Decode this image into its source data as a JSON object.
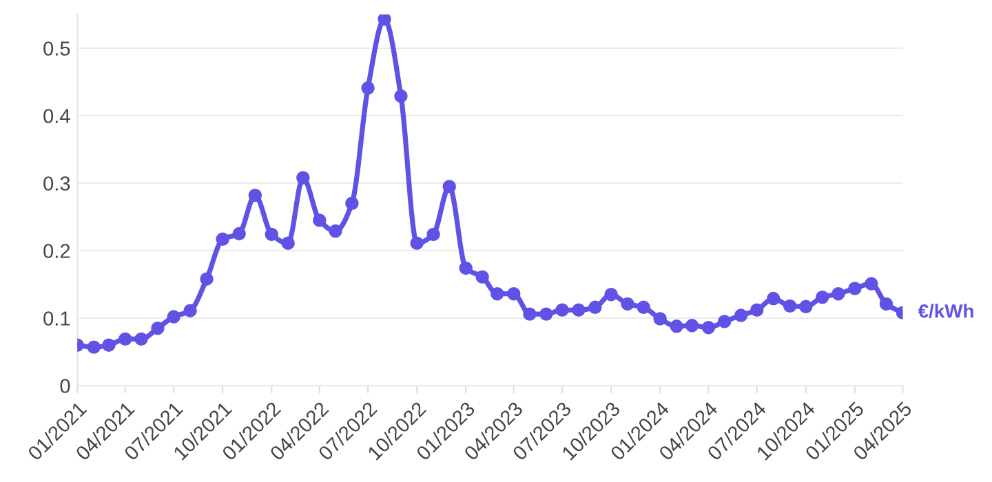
{
  "chart_data": {
    "type": "line",
    "x": [
      "2021-01",
      "2021-02",
      "2021-03",
      "2021-04",
      "2021-05",
      "2021-06",
      "2021-07",
      "2021-08",
      "2021-09",
      "2021-10",
      "2021-11",
      "2021-12",
      "2022-01",
      "2022-02",
      "2022-03",
      "2022-04",
      "2022-05",
      "2022-06",
      "2022-07",
      "2022-08",
      "2022-09",
      "2022-10",
      "2022-11",
      "2022-12",
      "2023-01",
      "2023-02",
      "2023-03",
      "2023-04",
      "2023-05",
      "2023-06",
      "2023-07",
      "2023-08",
      "2023-09",
      "2023-10",
      "2023-11",
      "2023-12",
      "2024-01",
      "2024-02",
      "2024-03",
      "2024-04",
      "2024-05",
      "2024-06",
      "2024-07",
      "2024-08",
      "2024-09",
      "2024-10",
      "2024-11",
      "2024-12",
      "2025-01",
      "2025-02",
      "2025-03",
      "2025-04"
    ],
    "series": [
      {
        "name": "€/kWh",
        "color": "#6152e6",
        "values": [
          0.06,
          0.057,
          0.06,
          0.069,
          0.069,
          0.085,
          0.102,
          0.111,
          0.158,
          0.217,
          0.225,
          0.282,
          0.224,
          0.211,
          0.308,
          0.245,
          0.229,
          0.27,
          0.441,
          0.543,
          0.429,
          0.211,
          0.224,
          0.295,
          0.174,
          0.161,
          0.136,
          0.136,
          0.106,
          0.106,
          0.112,
          0.112,
          0.116,
          0.135,
          0.121,
          0.116,
          0.099,
          0.088,
          0.089,
          0.086,
          0.095,
          0.104,
          0.112,
          0.129,
          0.118,
          0.117,
          0.131,
          0.136,
          0.144,
          0.151,
          0.121,
          0.108
        ]
      }
    ],
    "xlim": [
      "2021-01",
      "2025-04"
    ],
    "xticks": [
      {
        "value": "2021-01",
        "label": "01/2021"
      },
      {
        "value": "2021-04",
        "label": "04/2021"
      },
      {
        "value": "2021-07",
        "label": "07/2021"
      },
      {
        "value": "2021-10",
        "label": "10/2021"
      },
      {
        "value": "2022-01",
        "label": "01/2022"
      },
      {
        "value": "2022-04",
        "label": "04/2022"
      },
      {
        "value": "2022-07",
        "label": "07/2022"
      },
      {
        "value": "2022-10",
        "label": "10/2022"
      },
      {
        "value": "2023-01",
        "label": "01/2023"
      },
      {
        "value": "2023-04",
        "label": "04/2023"
      },
      {
        "value": "2023-07",
        "label": "07/2023"
      },
      {
        "value": "2023-10",
        "label": "10/2023"
      },
      {
        "value": "2024-01",
        "label": "01/2024"
      },
      {
        "value": "2024-04",
        "label": "04/2024"
      },
      {
        "value": "2024-07",
        "label": "07/2024"
      },
      {
        "value": "2024-10",
        "label": "10/2024"
      },
      {
        "value": "2025-01",
        "label": "01/2025"
      },
      {
        "value": "2025-04",
        "label": "04/2025"
      }
    ],
    "ylim": [
      0,
      0.55
    ],
    "yticks": [
      0,
      0.1,
      0.2,
      0.3,
      0.4,
      0.5
    ],
    "grid": "y",
    "marker": "circle",
    "line_style": "solid"
  }
}
